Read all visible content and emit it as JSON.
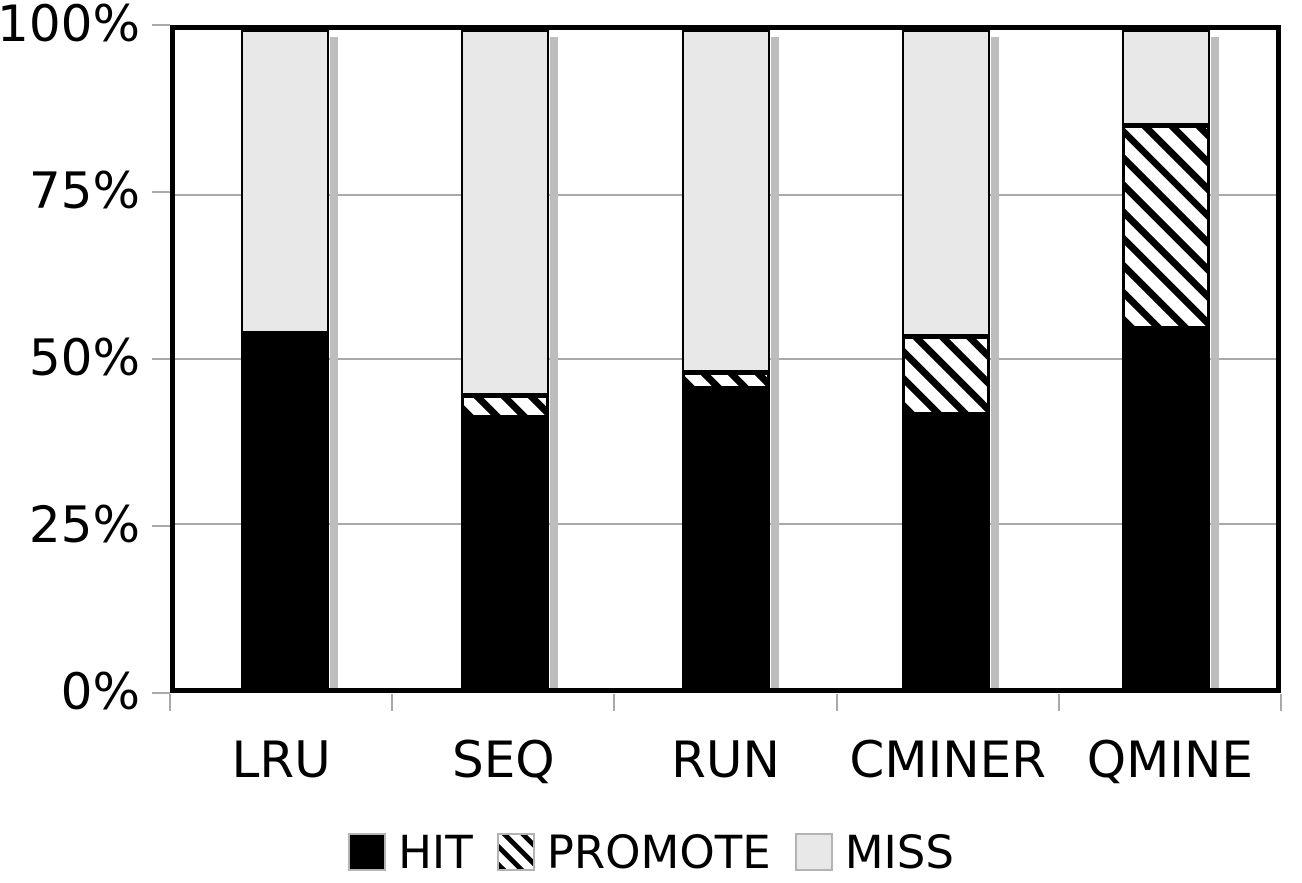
{
  "chart_data": {
    "type": "bar",
    "stacked": true,
    "title": "",
    "xlabel": "",
    "ylabel": "",
    "ylim": [
      0,
      100
    ],
    "grid": true,
    "y_ticks_top_to_bottom": [
      "100%",
      "75%",
      "50%",
      "25%",
      "0%"
    ],
    "categories": [
      "LRU",
      "SEQ",
      "RUN",
      "CMINER",
      "QMINE"
    ],
    "series": [
      {
        "name": "HIT",
        "fill": "solid-black",
        "values": [
          54,
          41,
          45.5,
          41.5,
          54.5
        ]
      },
      {
        "name": "PROMOTE",
        "fill": "diagonal-hatch",
        "values": [
          0,
          3.5,
          2.5,
          12,
          31
        ]
      },
      {
        "name": "MISS",
        "fill": "light-gray",
        "values": [
          46,
          55.5,
          52,
          46.5,
          14.5
        ]
      }
    ],
    "legend": {
      "position": "bottom",
      "entries": [
        "HIT",
        "PROMOTE",
        "MISS"
      ]
    }
  },
  "colors": {
    "background": "#ffffff",
    "frame": "#000000",
    "gridline": "#a9a9a9",
    "hit": "#000000",
    "promote_stripe": "#000000",
    "promote_bg": "#ffffff",
    "miss": "#e8e8e8",
    "shadow": "#bdbdbd"
  }
}
